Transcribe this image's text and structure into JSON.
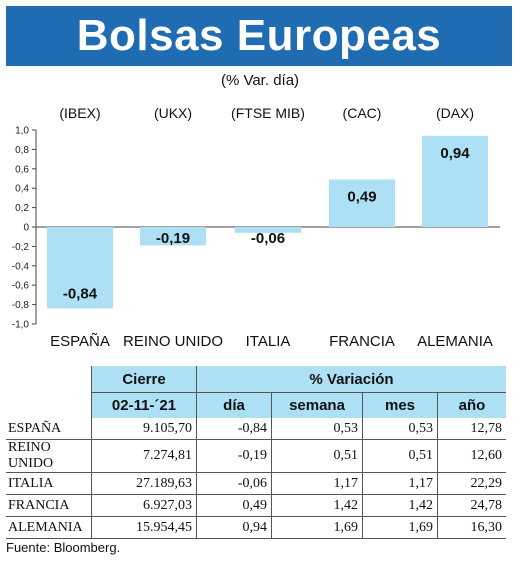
{
  "header": {
    "title": "Bolsas Europeas",
    "subtitle": "(% Var. día)"
  },
  "colors": {
    "header_bg": "#1f6cb3",
    "bar": "#aee0f5",
    "table_header": "#aee0f5"
  },
  "chart_data": {
    "type": "bar",
    "index_labels": [
      "(IBEX)",
      "(UKX)",
      "(FTSE MIB)",
      "(CAC)",
      "(DAX)"
    ],
    "categories": [
      "ESPAÑA",
      "REINO UNIDO",
      "ITALIA",
      "FRANCIA",
      "ALEMANIA"
    ],
    "values": [
      -0.84,
      -0.19,
      -0.06,
      0.49,
      0.94
    ],
    "value_labels": [
      "-0,84",
      "-0,19",
      "-0,06",
      "0,49",
      "0,94"
    ],
    "ylim": [
      -1.0,
      1.0
    ],
    "ytick_values": [
      1.0,
      0.8,
      0.6,
      0.4,
      0.2,
      0,
      -0.2,
      -0.4,
      -0.6,
      -0.8,
      -1.0
    ],
    "ytick_labels": [
      "1,0",
      "0,8",
      "0,6",
      "0,4",
      "0,2",
      "0",
      "-0,2",
      "-0,4",
      "-0,6",
      "-0,8",
      "-1,0"
    ],
    "grid": false
  },
  "table": {
    "group_headers": {
      "cierre": "Cierre",
      "variacion": "% Variación"
    },
    "columns": [
      "02-11-´21",
      "día",
      "semana",
      "mes",
      "año"
    ],
    "rows": [
      {
        "name": "ESPAÑA",
        "cierre": "9.105,70",
        "dia": "-0,84",
        "semana": "0,53",
        "mes": "0,53",
        "ano": "12,78"
      },
      {
        "name": "REINO UNIDO",
        "cierre": "7.274,81",
        "dia": "-0,19",
        "semana": "0,51",
        "mes": "0,51",
        "ano": "12,60"
      },
      {
        "name": "ITALIA",
        "cierre": "27.189,63",
        "dia": "-0,06",
        "semana": "1,17",
        "mes": "1,17",
        "ano": "22,29"
      },
      {
        "name": "FRANCIA",
        "cierre": "6.927,03",
        "dia": "0,49",
        "semana": "1,42",
        "mes": "1,42",
        "ano": "24,78"
      },
      {
        "name": "ALEMANIA",
        "cierre": "15.954,45",
        "dia": "0,94",
        "semana": "1,69",
        "mes": "1,69",
        "ano": "16,30"
      }
    ]
  },
  "source": "Fuente: Bloomberg."
}
